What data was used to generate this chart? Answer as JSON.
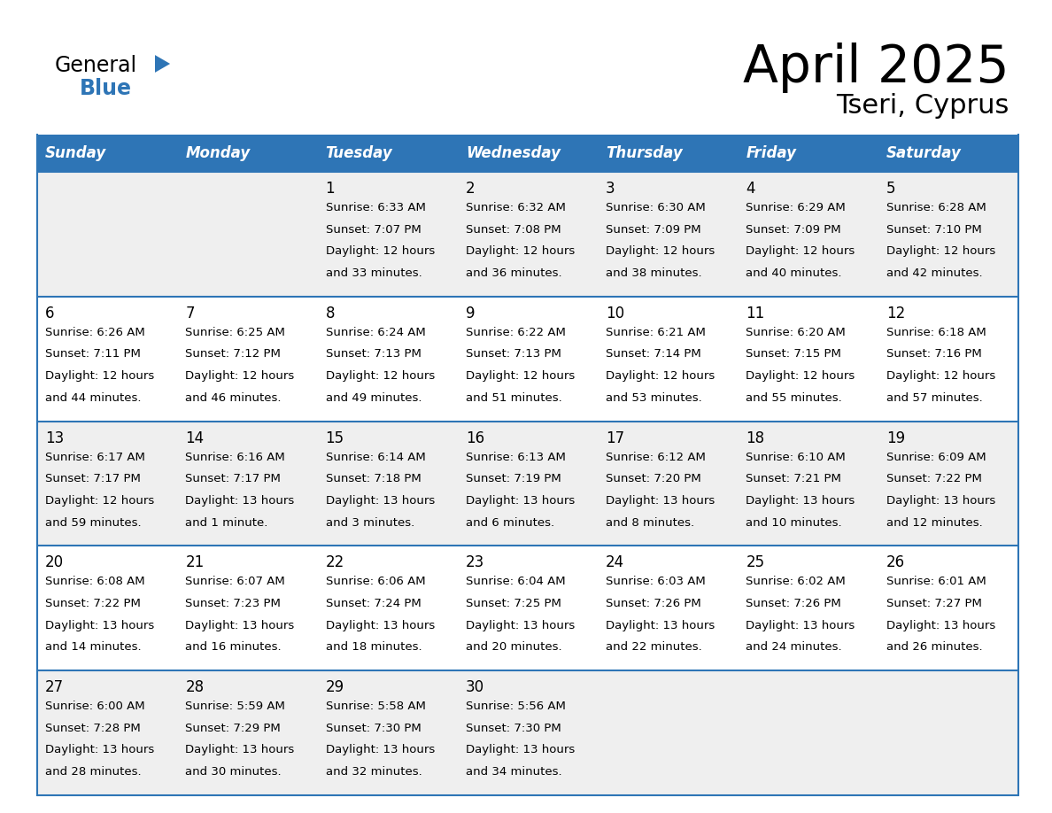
{
  "title": "April 2025",
  "subtitle": "Tseri, Cyprus",
  "header_color": "#2E75B6",
  "header_text_color": "#FFFFFF",
  "cell_bg_even": "#EFEFEF",
  "cell_bg_odd": "#FFFFFF",
  "border_color": "#2E75B6",
  "days_of_week": [
    "Sunday",
    "Monday",
    "Tuesday",
    "Wednesday",
    "Thursday",
    "Friday",
    "Saturday"
  ],
  "weeks": [
    [
      {
        "day": "",
        "lines": []
      },
      {
        "day": "",
        "lines": []
      },
      {
        "day": "1",
        "lines": [
          "Sunrise: 6:33 AM",
          "Sunset: 7:07 PM",
          "Daylight: 12 hours",
          "and 33 minutes."
        ]
      },
      {
        "day": "2",
        "lines": [
          "Sunrise: 6:32 AM",
          "Sunset: 7:08 PM",
          "Daylight: 12 hours",
          "and 36 minutes."
        ]
      },
      {
        "day": "3",
        "lines": [
          "Sunrise: 6:30 AM",
          "Sunset: 7:09 PM",
          "Daylight: 12 hours",
          "and 38 minutes."
        ]
      },
      {
        "day": "4",
        "lines": [
          "Sunrise: 6:29 AM",
          "Sunset: 7:09 PM",
          "Daylight: 12 hours",
          "and 40 minutes."
        ]
      },
      {
        "day": "5",
        "lines": [
          "Sunrise: 6:28 AM",
          "Sunset: 7:10 PM",
          "Daylight: 12 hours",
          "and 42 minutes."
        ]
      }
    ],
    [
      {
        "day": "6",
        "lines": [
          "Sunrise: 6:26 AM",
          "Sunset: 7:11 PM",
          "Daylight: 12 hours",
          "and 44 minutes."
        ]
      },
      {
        "day": "7",
        "lines": [
          "Sunrise: 6:25 AM",
          "Sunset: 7:12 PM",
          "Daylight: 12 hours",
          "and 46 minutes."
        ]
      },
      {
        "day": "8",
        "lines": [
          "Sunrise: 6:24 AM",
          "Sunset: 7:13 PM",
          "Daylight: 12 hours",
          "and 49 minutes."
        ]
      },
      {
        "day": "9",
        "lines": [
          "Sunrise: 6:22 AM",
          "Sunset: 7:13 PM",
          "Daylight: 12 hours",
          "and 51 minutes."
        ]
      },
      {
        "day": "10",
        "lines": [
          "Sunrise: 6:21 AM",
          "Sunset: 7:14 PM",
          "Daylight: 12 hours",
          "and 53 minutes."
        ]
      },
      {
        "day": "11",
        "lines": [
          "Sunrise: 6:20 AM",
          "Sunset: 7:15 PM",
          "Daylight: 12 hours",
          "and 55 minutes."
        ]
      },
      {
        "day": "12",
        "lines": [
          "Sunrise: 6:18 AM",
          "Sunset: 7:16 PM",
          "Daylight: 12 hours",
          "and 57 minutes."
        ]
      }
    ],
    [
      {
        "day": "13",
        "lines": [
          "Sunrise: 6:17 AM",
          "Sunset: 7:17 PM",
          "Daylight: 12 hours",
          "and 59 minutes."
        ]
      },
      {
        "day": "14",
        "lines": [
          "Sunrise: 6:16 AM",
          "Sunset: 7:17 PM",
          "Daylight: 13 hours",
          "and 1 minute."
        ]
      },
      {
        "day": "15",
        "lines": [
          "Sunrise: 6:14 AM",
          "Sunset: 7:18 PM",
          "Daylight: 13 hours",
          "and 3 minutes."
        ]
      },
      {
        "day": "16",
        "lines": [
          "Sunrise: 6:13 AM",
          "Sunset: 7:19 PM",
          "Daylight: 13 hours",
          "and 6 minutes."
        ]
      },
      {
        "day": "17",
        "lines": [
          "Sunrise: 6:12 AM",
          "Sunset: 7:20 PM",
          "Daylight: 13 hours",
          "and 8 minutes."
        ]
      },
      {
        "day": "18",
        "lines": [
          "Sunrise: 6:10 AM",
          "Sunset: 7:21 PM",
          "Daylight: 13 hours",
          "and 10 minutes."
        ]
      },
      {
        "day": "19",
        "lines": [
          "Sunrise: 6:09 AM",
          "Sunset: 7:22 PM",
          "Daylight: 13 hours",
          "and 12 minutes."
        ]
      }
    ],
    [
      {
        "day": "20",
        "lines": [
          "Sunrise: 6:08 AM",
          "Sunset: 7:22 PM",
          "Daylight: 13 hours",
          "and 14 minutes."
        ]
      },
      {
        "day": "21",
        "lines": [
          "Sunrise: 6:07 AM",
          "Sunset: 7:23 PM",
          "Daylight: 13 hours",
          "and 16 minutes."
        ]
      },
      {
        "day": "22",
        "lines": [
          "Sunrise: 6:06 AM",
          "Sunset: 7:24 PM",
          "Daylight: 13 hours",
          "and 18 minutes."
        ]
      },
      {
        "day": "23",
        "lines": [
          "Sunrise: 6:04 AM",
          "Sunset: 7:25 PM",
          "Daylight: 13 hours",
          "and 20 minutes."
        ]
      },
      {
        "day": "24",
        "lines": [
          "Sunrise: 6:03 AM",
          "Sunset: 7:26 PM",
          "Daylight: 13 hours",
          "and 22 minutes."
        ]
      },
      {
        "day": "25",
        "lines": [
          "Sunrise: 6:02 AM",
          "Sunset: 7:26 PM",
          "Daylight: 13 hours",
          "and 24 minutes."
        ]
      },
      {
        "day": "26",
        "lines": [
          "Sunrise: 6:01 AM",
          "Sunset: 7:27 PM",
          "Daylight: 13 hours",
          "and 26 minutes."
        ]
      }
    ],
    [
      {
        "day": "27",
        "lines": [
          "Sunrise: 6:00 AM",
          "Sunset: 7:28 PM",
          "Daylight: 13 hours",
          "and 28 minutes."
        ]
      },
      {
        "day": "28",
        "lines": [
          "Sunrise: 5:59 AM",
          "Sunset: 7:29 PM",
          "Daylight: 13 hours",
          "and 30 minutes."
        ]
      },
      {
        "day": "29",
        "lines": [
          "Sunrise: 5:58 AM",
          "Sunset: 7:30 PM",
          "Daylight: 13 hours",
          "and 32 minutes."
        ]
      },
      {
        "day": "30",
        "lines": [
          "Sunrise: 5:56 AM",
          "Sunset: 7:30 PM",
          "Daylight: 13 hours",
          "and 34 minutes."
        ]
      },
      {
        "day": "",
        "lines": []
      },
      {
        "day": "",
        "lines": []
      },
      {
        "day": "",
        "lines": []
      }
    ]
  ]
}
